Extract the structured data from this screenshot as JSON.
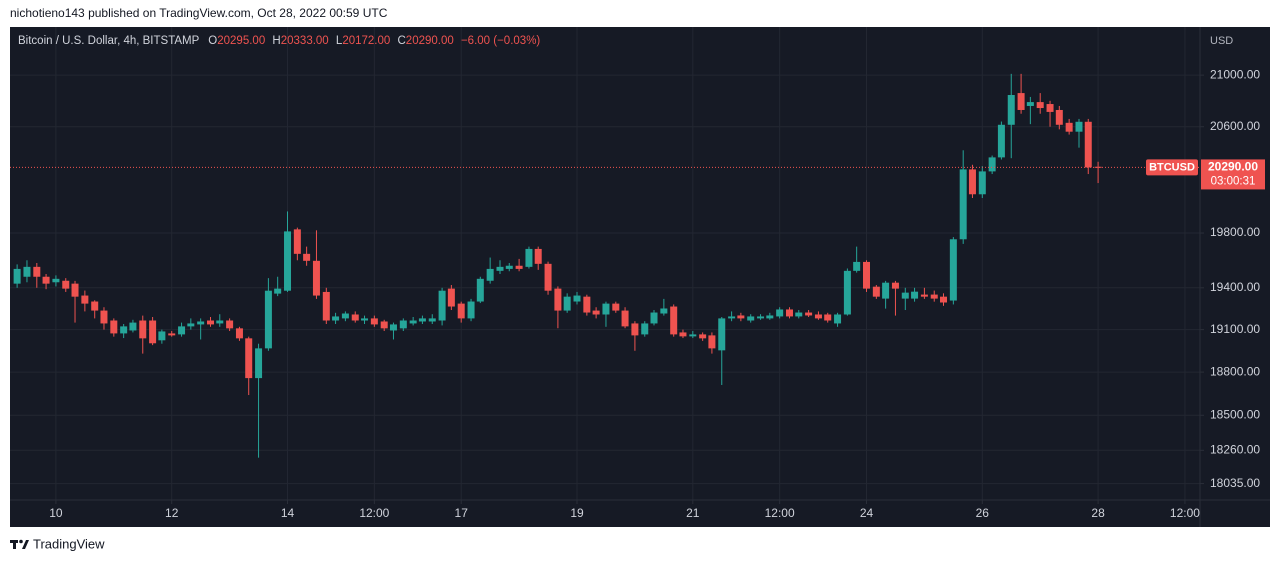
{
  "header": {
    "byline": "nichotieno143 published on TradingView.com, Oct 28, 2022 00:59 UTC"
  },
  "chart_data": {
    "type": "candlestick",
    "title": "Bitcoin / U.S. Dollar, 4h, BITSTAMP",
    "ohlc_legend": [
      {
        "label": "O",
        "value": "20295.00"
      },
      {
        "label": "H",
        "value": "20333.00"
      },
      {
        "label": "L",
        "value": "20172.00"
      },
      {
        "label": "C",
        "value": "20290.00"
      }
    ],
    "change": "−6.00 (−0.03%)",
    "y_label": "USD",
    "log_scale": true,
    "grid": true,
    "up_color": "#26a69a",
    "down_color": "#ef5350",
    "xlim": [
      9.207,
      29.76
    ],
    "xticks": [
      10,
      12,
      14,
      {
        "value": 15.5,
        "label": "12:00"
      },
      17,
      19,
      21,
      {
        "value": 22.5,
        "label": "12:00"
      },
      24,
      26,
      28,
      {
        "value": 29.5,
        "label": "12:00"
      }
    ],
    "ylim": [
      17925,
      21380
    ],
    "yticks": [
      {
        "value": 18035,
        "label": "18035.00"
      },
      {
        "value": 18260,
        "label": "18260.00"
      },
      {
        "value": 18500,
        "label": "18500.00"
      },
      {
        "value": 18800,
        "label": "18800.00"
      },
      {
        "value": 19100,
        "label": "19100.00"
      },
      {
        "value": 19400,
        "label": "19400.00"
      },
      {
        "value": 19800,
        "label": "19800.00"
      },
      {
        "value": 20600,
        "label": "20600.00"
      },
      {
        "value": 21000,
        "label": "21000.00"
      }
    ],
    "x": [
      9.33,
      9.5,
      9.67,
      9.83,
      10,
      10.17,
      10.33,
      10.5,
      10.67,
      10.83,
      11,
      11.17,
      11.33,
      11.5,
      11.67,
      11.83,
      12,
      12.17,
      12.33,
      12.5,
      12.67,
      12.83,
      13,
      13.17,
      13.33,
      13.5,
      13.67,
      13.83,
      14,
      14.17,
      14.33,
      14.5,
      14.67,
      14.83,
      15,
      15.17,
      15.33,
      15.5,
      15.67,
      15.83,
      16,
      16.17,
      16.33,
      16.5,
      16.67,
      16.83,
      17,
      17.17,
      17.33,
      17.5,
      17.67,
      17.83,
      18,
      18.17,
      18.33,
      18.5,
      18.67,
      18.83,
      19,
      19.17,
      19.33,
      19.5,
      19.67,
      19.83,
      20,
      20.17,
      20.33,
      20.5,
      20.67,
      20.83,
      21,
      21.17,
      21.33,
      21.5,
      21.67,
      21.83,
      22,
      22.17,
      22.33,
      22.5,
      22.67,
      22.83,
      23,
      23.17,
      23.33,
      23.5,
      23.67,
      23.83,
      24,
      24.17,
      24.33,
      24.5,
      24.67,
      24.83,
      25,
      25.17,
      25.33,
      25.5,
      25.67,
      25.83,
      26,
      26.17,
      26.33,
      26.5,
      26.67,
      26.83,
      27,
      27.17,
      27.33,
      27.5,
      27.67,
      27.83,
      28
    ],
    "open": [
      19430,
      19480,
      19552,
      19480,
      19440,
      19451,
      19430,
      19344,
      19301,
      19236,
      19165,
      19073,
      19094,
      19165,
      19165,
      19024,
      19073,
      19066,
      19123,
      19137,
      19165,
      19144,
      19165,
      19109,
      19038,
      18758,
      18967,
      19358,
      19379,
      19827,
      19647,
      19596,
      19370,
      19165,
      19180,
      19208,
      19165,
      19180,
      19158,
      19094,
      19109,
      19144,
      19158,
      19158,
      19165,
      19394,
      19286,
      19180,
      19301,
      19451,
      19523,
      19537,
      19560,
      19552,
      19683,
      19574,
      19394,
      19236,
      19301,
      19336,
      19236,
      19208,
      19286,
      19236,
      19144,
      19066,
      19144,
      19215,
      19265,
      19080,
      19052,
      19066,
      19059,
      18953,
      19180,
      19201,
      19165,
      19180,
      19180,
      19194,
      19244,
      19194,
      19222,
      19208,
      19208,
      19144,
      19208,
      19523,
      19588,
      19408,
      19322,
      19437,
      19322,
      19322,
      19351,
      19351,
      19336,
      19308,
      19754,
      20275,
      20088,
      20260,
      20366,
      20615,
      20860,
      20760,
      20790,
      20775,
      20729,
      20630,
      20562,
      20638,
      20295
    ],
    "high": [
      19570,
      19600,
      19580,
      19500,
      19490,
      19470,
      19450,
      19380,
      19310,
      19260,
      19180,
      19140,
      19170,
      19200,
      19190,
      19100,
      19090,
      19150,
      19180,
      19180,
      19190,
      19210,
      19180,
      19120,
      19050,
      19000,
      19470,
      19480,
      19960,
      19840,
      19700,
      19820,
      19400,
      19220,
      19230,
      19230,
      19200,
      19200,
      19170,
      19150,
      19180,
      19190,
      19200,
      19210,
      19400,
      19420,
      19300,
      19320,
      19480,
      19620,
      19600,
      19580,
      19610,
      19700,
      19700,
      19590,
      19410,
      19360,
      19370,
      19350,
      19260,
      19300,
      19300,
      19260,
      19160,
      19160,
      19240,
      19320,
      19280,
      19100,
      19090,
      19080,
      19080,
      19190,
      19230,
      19220,
      19210,
      19210,
      19220,
      19260,
      19260,
      19240,
      19240,
      19230,
      19220,
      19220,
      19540,
      19700,
      19600,
      19420,
      19450,
      19450,
      19400,
      19400,
      19400,
      19380,
      19360,
      19770,
      20420,
      20310,
      20300,
      20380,
      20640,
      21010,
      21010,
      20830,
      20860,
      20800,
      20760,
      20660,
      20660,
      20660,
      20333
    ],
    "low": [
      19400,
      19440,
      19400,
      19390,
      19410,
      19370,
      19150,
      19230,
      19180,
      19100,
      19050,
      19040,
      19080,
      18930,
      18990,
      19000,
      19050,
      19050,
      19100,
      19030,
      19120,
      19120,
      19090,
      19020,
      18640,
      18210,
      18950,
      19340,
      19370,
      19600,
      19560,
      19320,
      19140,
      19140,
      19160,
      19150,
      19140,
      19120,
      19090,
      19030,
      19090,
      19130,
      19140,
      19140,
      19130,
      19240,
      19150,
      19160,
      19290,
      19430,
      19500,
      19520,
      19520,
      19540,
      19530,
      19350,
      19110,
      19220,
      19280,
      19200,
      19180,
      19120,
      19220,
      19110,
      18950,
      19050,
      19130,
      19200,
      19050,
      19040,
      19040,
      19020,
      18930,
      18710,
      19160,
      19160,
      19150,
      19170,
      19170,
      19180,
      19180,
      19180,
      19190,
      19170,
      19150,
      19120,
      19200,
      19510,
      19370,
      19320,
      19250,
      19200,
      19240,
      19300,
      19320,
      19300,
      19270,
      19280,
      19720,
      20060,
      20060,
      20240,
      20350,
      20360,
      20700,
      20620,
      20700,
      20600,
      20580,
      20540,
      20440,
      20240,
      20172
    ],
    "close": [
      19537,
      19552,
      19480,
      19430,
      19465,
      19394,
      19336,
      19286,
      19236,
      19144,
      19073,
      19123,
      19150,
      19038,
      19003,
      19087,
      19059,
      19123,
      19144,
      19158,
      19137,
      19165,
      19109,
      19038,
      18758,
      18967,
      19379,
      19394,
      19812,
      19647,
      19596,
      19344,
      19165,
      19194,
      19215,
      19165,
      19180,
      19137,
      19109,
      19137,
      19165,
      19165,
      19180,
      19180,
      19379,
      19265,
      19180,
      19301,
      19465,
      19537,
      19552,
      19560,
      19537,
      19683,
      19574,
      19379,
      19236,
      19336,
      19344,
      19222,
      19208,
      19286,
      19236,
      19123,
      19059,
      19144,
      19222,
      19251,
      19066,
      19052,
      19066,
      19038,
      18967,
      19180,
      19194,
      19180,
      19194,
      19194,
      19201,
      19244,
      19194,
      19222,
      19201,
      19180,
      19165,
      19208,
      19523,
      19588,
      19394,
      19336,
      19437,
      19394,
      19365,
      19372,
      19336,
      19322,
      19294,
      19754,
      20275,
      20088,
      20260,
      20366,
      20615,
      20845,
      20729,
      20790,
      20744,
      20714,
      20615,
      20562,
      20638,
      20290,
      20290
    ],
    "price_marker": {
      "symbol": "BTCUSD",
      "value": 20290,
      "label": "20290.00",
      "countdown": "03:00:31"
    }
  },
  "footer": {
    "brand": "TradingView"
  }
}
